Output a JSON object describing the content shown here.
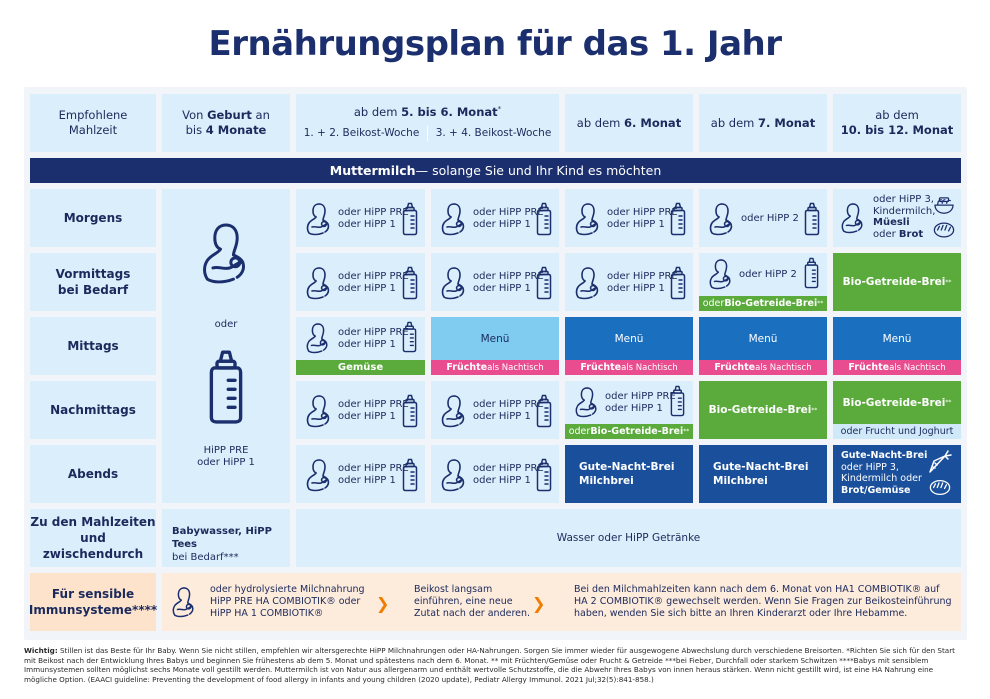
{
  "title": "Ernährungsplan für das 1. Jahr",
  "header": {
    "col0": "Empfohlene\nMahlzeit",
    "col1_a": "Von ",
    "col1_b": "Geburt",
    "col1_c": " an\nbis ",
    "col1_d": "4 Monate",
    "col2_a": "ab dem ",
    "col2_b": "5. bis 6. Monat",
    "col2_sup": "*",
    "col2_sub1": "1. + 2. Beikost-Woche",
    "col2_sub2": "3. + 4. Beikost-Woche",
    "col4_a": "ab dem ",
    "col4_b": "6. Monat",
    "col5_a": "ab dem ",
    "col5_b": "7. Monat",
    "col6_a": "ab dem",
    "col6_b": "10. bis 12. Monat"
  },
  "banner": {
    "bold": "Muttermilch",
    "rest": " — solange Sie und Ihr Kind es möchten"
  },
  "rows": {
    "morgens": "Morgens",
    "vormittags": "Vormittags\nbei Bedarf",
    "mittags": "Mittags",
    "nachmittags": "Nachmittags",
    "abends": "Abends",
    "zwischen": "Zu den Mahlzeiten\nund zwischendurch",
    "sensibel": "Für sensible\nImmunsysteme****"
  },
  "birth": {
    "oder": "oder",
    "milk": "HiPP PRE\noder HiPP 1"
  },
  "cells": {
    "pre_hipp1": "oder HiPP PRE\noder HiPP 1",
    "hipp2": "oder HiPP 2",
    "m10": "oder HiPP 3,\nKindermilch,",
    "m10_b1": "Müesli",
    "m10_b2_a": "oder ",
    "m10_b2_b": "Brot",
    "getreide": "Bio-Getreide-Brei",
    "getreide_sup": "**",
    "oder_getreide_a": "oder ",
    "oder_getreide_b": "Bio-Getreide-Brei",
    "menu": "Menü",
    "gemuese": "Gemüse",
    "fruechte_a": "Früchte",
    "fruechte_b": " als Nachtisch",
    "frucht_joghurt": "oder Frucht und Joghurt",
    "gute_nacht": "Gute-Nacht-Brei",
    "milchbrei": "Milchbrei",
    "abend10_1": "Gute-Nacht-Brei",
    "abend10_2": "oder HiPP 3,\nKindermilch oder",
    "abend10_3": "Brot/Gemüse",
    "zw_a": "Babywasser, HiPP Tees",
    "zw_b": "bei Bedarf***",
    "wasser": "Wasser oder HiPP Getränke"
  },
  "sensibel": {
    "t1": "oder hydrolysierte  Milchnahrung\nHiPP PRE HA COMBIOTIK® oder\nHiPP HA 1 COMBIOTIK®",
    "t2": "Beikost langsam\neinführen, eine neue\nZutat nach der anderen.",
    "t3": "Bei den Milchmahlzeiten kann nach dem 6. Monat von HA1 COMBIOTIK® auf\nHA 2 COMBIOTIK® gewechselt werden. Wenn Sie Fragen zur Beikosteinführung\nhaben, wenden Sie sich bitte an Ihren Kinderarzt oder Ihre Hebamme."
  },
  "footnote": {
    "bold": "Wichtig:",
    "text": " Stillen ist das Beste für Ihr Baby. Wenn Sie nicht stillen, empfehlen wir altersgerechte HiPP Milchnahrungen oder HA-Nahrungen. Sorgen Sie immer wieder für ausgewogene Abwechslung durch verschiedene Breisorten.     *Richten Sie sich für den Start mit Beikost nach der Entwicklung Ihres Babys und beginnen Sie frühestens ab dem 5. Monat und spätestens nach dem 6. Monat.      ** mit Früchten/Gemüse oder Frucht & Getreide      ***bei Fieber, Durchfall oder starkem Schwitzen      ****Babys mit sensiblem Immunsystemen sollten möglichst sechs Monate voll gestillt werden. Muttermilch ist von Natur aus allergenarm und enthält wertvolle Schutzstoffe, die die Abwehr Ihres Babys von innen heraus stärken. Wenn nicht gestillt wird, ist eine HA Nahrung eine mögliche Option. (EAACI guideline: Preventing the development of food allergy in infants and young children (2020 update), Pediatr Allergy Immunol. 2021 Jul;32(5):841-858.)"
  },
  "colors": {
    "navy": "#1b2f6e",
    "green": "#5aab3c",
    "sky": "#7fccf0",
    "blue": "#1a6fbf",
    "pink": "#e94c8f",
    "light": "#dbeefb",
    "peach": "#fde3cc",
    "orange": "#f07d00"
  }
}
